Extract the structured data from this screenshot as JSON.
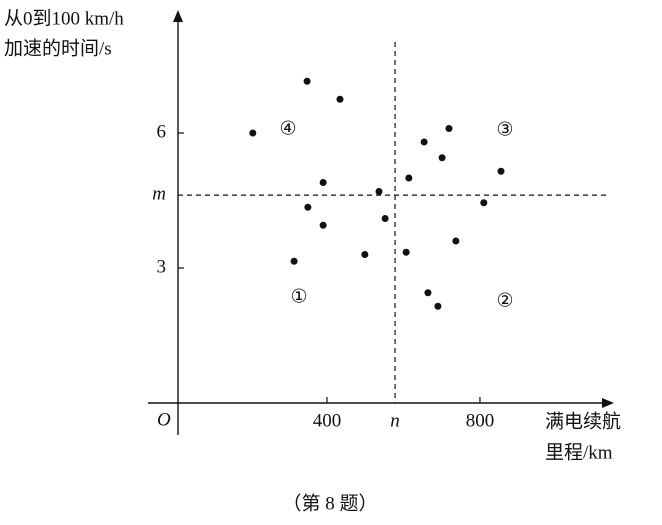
{
  "chart_data": {
    "type": "scatter",
    "x_label": [
      "满电续航",
      "里程/km"
    ],
    "y_label": [
      "从0到100 km/h",
      "加速的时间/s"
    ],
    "origin_label": "O",
    "caption": "（第 8 题）",
    "x": [
      206,
      348,
      434,
      390,
      350,
      390,
      314,
      499,
      536,
      552,
      607,
      614,
      654,
      719,
      701,
      810,
      855,
      737,
      664,
      690
    ],
    "series": [
      {
        "color": "#111111",
        "values": [
          6.0,
          7.15,
          6.75,
          4.9,
          4.35,
          3.95,
          3.15,
          3.3,
          4.7,
          4.1,
          3.35,
          5.0,
          5.8,
          6.1,
          5.45,
          4.45,
          5.15,
          3.6,
          2.45,
          2.15
        ]
      }
    ],
    "xlim": [
      0,
      1140
    ],
    "ylim": [
      0,
      8.6
    ],
    "xticks": [
      400,
      800
    ],
    "yticks": [
      3,
      6
    ],
    "reference_lines": [
      {
        "axis": "y",
        "value": 4.62,
        "label": "m"
      },
      {
        "axis": "x",
        "value": 578,
        "label": "n"
      }
    ],
    "annotations": [
      "④",
      "③",
      "①",
      "②"
    ]
  }
}
